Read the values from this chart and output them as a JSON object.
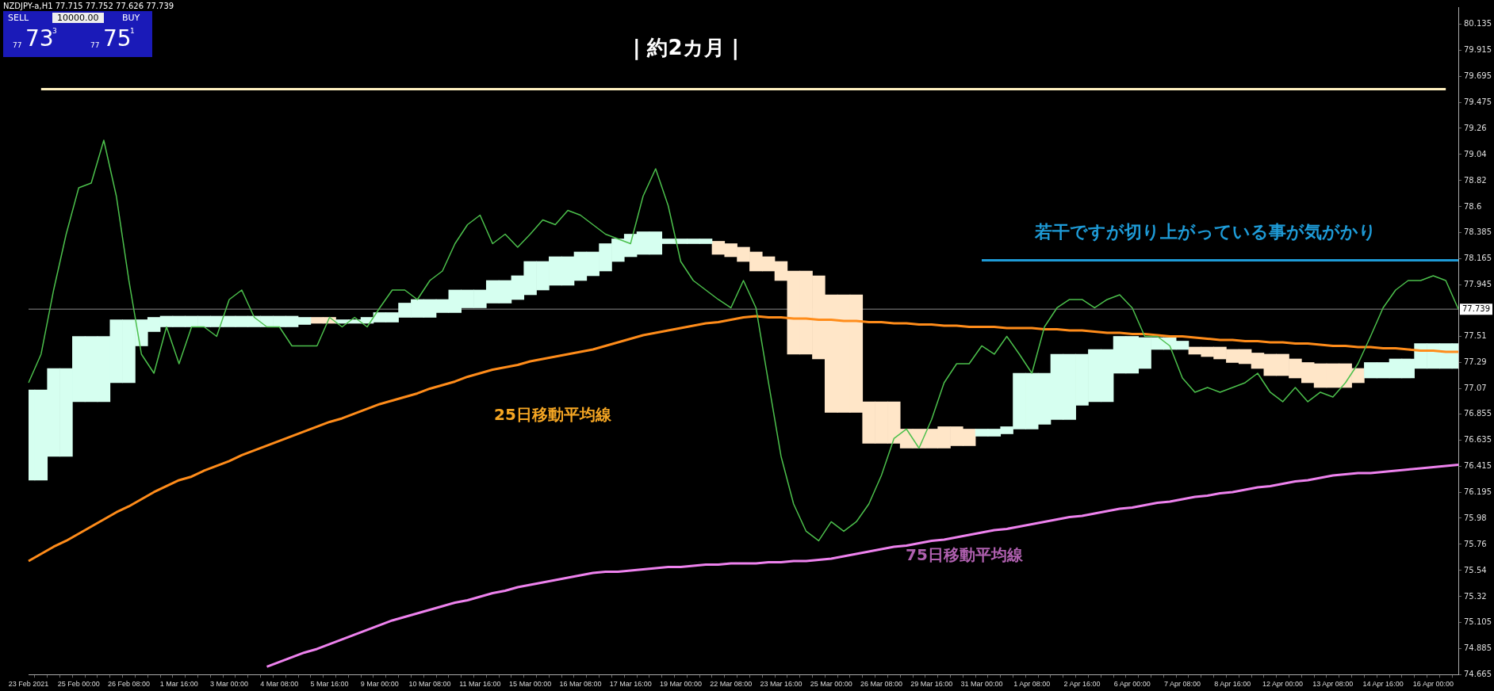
{
  "chart_data": {
    "type": "line",
    "title": "NZDJPY-a,H1  77.715 77.752 77.626 77.739",
    "categories": [
      "23 Feb 2021",
      null,
      null,
      null,
      "25 Feb 00:00",
      null,
      null,
      null,
      "26 Feb 08:00",
      null,
      null,
      null,
      "1 Mar 16:00",
      null,
      null,
      null,
      "3 Mar 00:00",
      null,
      null,
      null,
      "4 Mar 08:00",
      null,
      null,
      null,
      "5 Mar 16:00",
      null,
      null,
      null,
      "9 Mar 00:00",
      null,
      null,
      null,
      "10 Mar 08:00",
      null,
      null,
      null,
      "11 Mar 16:00",
      null,
      null,
      null,
      "15 Mar 00:00",
      null,
      null,
      null,
      "16 Mar 08:00",
      null,
      null,
      null,
      "17 Mar 16:00",
      null,
      null,
      null,
      "19 Mar 00:00",
      null,
      null,
      null,
      "22 Mar 08:00",
      null,
      null,
      null,
      "23 Mar 16:00",
      null,
      null,
      null,
      "25 Mar 00:00",
      null,
      null,
      null,
      "26 Mar 08:00",
      null,
      null,
      null,
      "29 Mar 16:00",
      null,
      null,
      null,
      "31 Mar 00:00",
      null,
      null,
      null,
      "1 Apr 08:00",
      null,
      null,
      null,
      "2 Apr 16:00",
      null,
      null,
      null,
      "6 Apr 00:00",
      null,
      null,
      null,
      "7 Apr 08:00",
      null,
      null,
      null,
      "8 Apr 16:00",
      null,
      null,
      null,
      "12 Apr 00:00",
      null,
      null,
      null,
      "13 Apr 08:00",
      null,
      null,
      null,
      "14 Apr 16:00",
      null,
      null,
      null,
      "16 Apr 00:00",
      null,
      null
    ],
    "series": [
      {
        "color": "#4cc04c",
        "values": [
          77.12,
          77.36,
          77.9,
          78.37,
          78.76,
          78.8,
          79.16,
          78.69,
          77.98,
          77.36,
          77.2,
          77.59,
          77.28,
          77.59,
          77.59,
          77.51,
          77.82,
          77.9,
          77.67,
          77.59,
          77.59,
          77.43,
          77.43,
          77.43,
          77.67,
          77.59,
          77.67,
          77.59,
          77.75,
          77.9,
          77.9,
          77.82,
          77.98,
          78.06,
          78.29,
          78.45,
          78.53,
          78.29,
          78.37,
          78.26,
          78.37,
          78.49,
          78.45,
          78.57,
          78.53,
          78.45,
          78.37,
          78.33,
          78.29,
          78.69,
          78.92,
          78.61,
          78.14,
          77.98,
          77.9,
          77.82,
          77.75,
          77.98,
          77.75,
          77.12,
          76.5,
          76.1,
          75.87,
          75.79,
          75.95,
          75.87,
          75.95,
          76.1,
          76.34,
          76.65,
          76.73,
          76.57,
          76.81,
          77.12,
          77.28,
          77.28,
          77.43,
          77.36,
          77.51,
          77.36,
          77.2,
          77.59,
          77.75,
          77.82,
          77.82,
          77.75,
          77.82,
          77.86,
          77.75,
          77.51,
          77.51,
          77.43,
          77.16,
          77.04,
          77.08,
          77.04,
          77.08,
          77.12,
          77.2,
          77.04,
          76.96,
          77.08,
          76.96,
          77.04,
          77.0,
          77.12,
          77.28,
          77.51,
          77.75,
          77.9,
          77.98,
          77.98,
          78.02,
          77.98,
          77.74
        ]
      },
      {
        "color": "#ff8c1a",
        "values": [
          75.62,
          75.68,
          75.74,
          75.79,
          75.85,
          75.91,
          75.97,
          76.03,
          76.08,
          76.14,
          76.2,
          76.25,
          76.3,
          76.33,
          76.38,
          76.42,
          76.46,
          76.51,
          76.55,
          76.59,
          76.63,
          76.67,
          76.71,
          76.75,
          76.79,
          76.82,
          76.86,
          76.9,
          76.94,
          76.97,
          77.0,
          77.03,
          77.07,
          77.1,
          77.13,
          77.17,
          77.2,
          77.23,
          77.25,
          77.27,
          77.3,
          77.32,
          77.34,
          77.36,
          77.38,
          77.4,
          77.43,
          77.46,
          77.49,
          77.52,
          77.54,
          77.56,
          77.58,
          77.6,
          77.62,
          77.63,
          77.65,
          77.67,
          77.68,
          77.67,
          77.67,
          77.66,
          77.66,
          77.65,
          77.65,
          77.64,
          77.64,
          77.63,
          77.63,
          77.62,
          77.62,
          77.61,
          77.61,
          77.6,
          77.6,
          77.59,
          77.59,
          77.59,
          77.58,
          77.58,
          77.58,
          77.57,
          77.57,
          77.56,
          77.56,
          77.55,
          77.54,
          77.54,
          77.53,
          77.53,
          77.52,
          77.51,
          77.51,
          77.5,
          77.49,
          77.48,
          77.48,
          77.47,
          77.47,
          77.46,
          77.46,
          77.45,
          77.45,
          77.44,
          77.43,
          77.43,
          77.42,
          77.42,
          77.41,
          77.41,
          77.4,
          77.39,
          77.39,
          77.38,
          77.38
        ]
      },
      {
        "color": "#ee82ee",
        "values": [
          null,
          null,
          null,
          null,
          null,
          null,
          null,
          null,
          null,
          null,
          null,
          null,
          null,
          null,
          null,
          null,
          null,
          null,
          null,
          74.73,
          74.77,
          74.81,
          74.85,
          74.88,
          74.92,
          74.96,
          75.0,
          75.04,
          75.08,
          75.12,
          75.15,
          75.18,
          75.21,
          75.24,
          75.27,
          75.29,
          75.32,
          75.35,
          75.37,
          75.4,
          75.42,
          75.44,
          75.46,
          75.48,
          75.5,
          75.52,
          75.53,
          75.53,
          75.54,
          75.55,
          75.56,
          75.57,
          75.57,
          75.58,
          75.59,
          75.59,
          75.6,
          75.6,
          75.6,
          75.61,
          75.61,
          75.62,
          75.62,
          75.63,
          75.64,
          75.66,
          75.68,
          75.7,
          75.72,
          75.74,
          75.75,
          75.77,
          75.79,
          75.8,
          75.82,
          75.84,
          75.86,
          75.88,
          75.89,
          75.91,
          75.93,
          75.95,
          75.97,
          75.99,
          76.0,
          76.02,
          76.04,
          76.06,
          76.07,
          76.09,
          76.11,
          76.12,
          76.14,
          76.16,
          76.17,
          76.19,
          76.2,
          76.22,
          76.24,
          76.25,
          76.27,
          76.29,
          76.3,
          76.32,
          76.34,
          76.35,
          76.36,
          76.36,
          76.37,
          76.38,
          76.39,
          76.4,
          76.41,
          76.42,
          76.43
        ]
      },
      {
        "color": "#fff0c0",
        "values": [
          null,
          79.59,
          null,
          null,
          null,
          null,
          null,
          null,
          null,
          null,
          null,
          null,
          null,
          null,
          null,
          null,
          null,
          null,
          null,
          null,
          null,
          null,
          null,
          null,
          null,
          null,
          null,
          null,
          null,
          null,
          null,
          null,
          null,
          null,
          null,
          null,
          null,
          null,
          null,
          null,
          null,
          null,
          null,
          null,
          null,
          null,
          null,
          null,
          null,
          null,
          null,
          null,
          null,
          null,
          null,
          null,
          null,
          null,
          null,
          null,
          null,
          null,
          null,
          null,
          null,
          null,
          null,
          null,
          null,
          null,
          null,
          null,
          null,
          null,
          null,
          null,
          null,
          null,
          null,
          null,
          null,
          null,
          null,
          null,
          null,
          null,
          null,
          null,
          null,
          null,
          null,
          null,
          null,
          null,
          null,
          null,
          null,
          null,
          null,
          null,
          null,
          null,
          null,
          null,
          null,
          null,
          null,
          null,
          null,
          null,
          null,
          null,
          null,
          79.59,
          null
        ]
      },
      {
        "color": "#1e9bd7",
        "values": [
          null,
          null,
          null,
          null,
          null,
          null,
          null,
          null,
          null,
          null,
          null,
          null,
          null,
          null,
          null,
          null,
          null,
          null,
          null,
          null,
          null,
          null,
          null,
          null,
          null,
          null,
          null,
          null,
          null,
          null,
          null,
          null,
          null,
          null,
          null,
          null,
          null,
          null,
          null,
          null,
          null,
          null,
          null,
          null,
          null,
          null,
          null,
          null,
          null,
          null,
          null,
          null,
          null,
          null,
          null,
          null,
          null,
          null,
          null,
          null,
          null,
          null,
          null,
          null,
          null,
          null,
          null,
          null,
          null,
          null,
          null,
          null,
          null,
          null,
          null,
          null,
          78.15,
          null,
          null,
          null,
          null,
          null,
          null,
          null,
          null,
          null,
          null,
          null,
          null,
          null,
          null,
          null,
          null,
          null,
          null,
          null,
          null,
          null,
          null,
          null,
          null,
          null,
          null,
          null,
          null,
          null,
          null,
          null,
          null,
          null,
          null,
          null,
          null,
          null,
          78.15
        ]
      },
      {
        "type": "bar",
        "color": "#d6fff0",
        "values": [
          0.76,
          0.76,
          0.74,
          0.74,
          0.55,
          0.55,
          0.55,
          0.53,
          0.53,
          0.22,
          0.12,
          0.09,
          0.09,
          0.09,
          0.09,
          0.09,
          0.09,
          0.09,
          0.09,
          0.09,
          0.09,
          0.09,
          0.06,
          null,
          null,
          0.03,
          0.03,
          0.05,
          0.08,
          0.08,
          0.12,
          0.15,
          0.15,
          0.11,
          0.19,
          0.15,
          0.15,
          0.19,
          0.19,
          0.2,
          0.28,
          0.24,
          0.24,
          0.24,
          0.24,
          0.2,
          0.23,
          0.19,
          0.19,
          0.19,
          0.19,
          0.04,
          0.04,
          0.04,
          0.04,
          null,
          null,
          null,
          null,
          null,
          null,
          null,
          null,
          null,
          null,
          null,
          null,
          null,
          null,
          null,
          null,
          null,
          null,
          null,
          null,
          null,
          0.06,
          0.06,
          0.06,
          0.47,
          0.47,
          0.43,
          0.55,
          0.55,
          0.43,
          0.44,
          0.44,
          0.31,
          0.31,
          0.26,
          0.1,
          0.1,
          0.07,
          null,
          null,
          null,
          null,
          null,
          null,
          null,
          null,
          null,
          null,
          null,
          null,
          null,
          null,
          0.13,
          0.13,
          0.16,
          0.16,
          0.21,
          0.21,
          0.21,
          0.21
        ],
        "base": [
          76.3,
          76.3,
          76.5,
          76.5,
          76.96,
          76.96,
          76.96,
          77.12,
          77.12,
          77.43,
          77.55,
          77.59,
          77.59,
          77.59,
          77.59,
          77.59,
          77.59,
          77.59,
          77.59,
          77.59,
          77.59,
          77.59,
          77.61,
          null,
          null,
          77.62,
          77.62,
          77.62,
          77.63,
          77.63,
          77.67,
          77.67,
          77.67,
          77.71,
          77.71,
          77.75,
          77.75,
          77.79,
          77.79,
          77.82,
          77.86,
          77.9,
          77.94,
          77.94,
          77.98,
          78.02,
          78.06,
          78.14,
          78.18,
          78.2,
          78.2,
          78.29,
          78.29,
          78.29,
          78.29,
          null,
          null,
          null,
          null,
          null,
          null,
          null,
          null,
          null,
          null,
          null,
          null,
          null,
          null,
          null,
          null,
          null,
          null,
          null,
          null,
          null,
          76.67,
          76.67,
          76.69,
          76.73,
          76.73,
          76.77,
          76.81,
          76.81,
          76.93,
          76.96,
          76.96,
          77.2,
          77.2,
          77.24,
          77.4,
          77.4,
          77.4,
          null,
          null,
          null,
          null,
          null,
          null,
          null,
          null,
          null,
          null,
          null,
          null,
          null,
          null,
          77.16,
          77.16,
          77.16,
          77.16,
          77.24,
          77.24,
          77.24,
          77.24
        ]
      },
      {
        "type": "bar",
        "color": "#ffe6c8",
        "values": [
          null,
          null,
          null,
          null,
          null,
          null,
          null,
          null,
          null,
          null,
          null,
          null,
          null,
          null,
          null,
          null,
          null,
          null,
          null,
          null,
          null,
          null,
          null,
          0.05,
          0.05,
          null,
          null,
          null,
          null,
          null,
          null,
          null,
          null,
          null,
          null,
          null,
          null,
          null,
          null,
          null,
          null,
          null,
          null,
          null,
          null,
          null,
          null,
          null,
          null,
          null,
          null,
          null,
          null,
          null,
          null,
          0.11,
          0.11,
          0.12,
          0.16,
          0.12,
          0.16,
          0.7,
          0.7,
          0.7,
          0.99,
          0.99,
          0.99,
          0.35,
          0.35,
          0.35,
          0.16,
          0.16,
          0.16,
          0.18,
          0.16,
          0.14,
          null,
          null,
          null,
          null,
          null,
          null,
          null,
          null,
          null,
          null,
          null,
          null,
          null,
          null,
          null,
          null,
          null,
          0.06,
          0.08,
          0.1,
          0.11,
          0.12,
          0.13,
          0.18,
          0.18,
          0.16,
          0.17,
          0.2,
          0.2,
          0.2,
          0.12,
          null,
          null,
          null,
          null,
          null,
          null,
          null,
          null
        ],
        "base": [
          null,
          null,
          null,
          null,
          null,
          null,
          null,
          null,
          null,
          null,
          null,
          null,
          null,
          null,
          null,
          null,
          null,
          null,
          null,
          null,
          null,
          null,
          null,
          77.62,
          77.62,
          null,
          null,
          null,
          null,
          null,
          null,
          null,
          null,
          null,
          null,
          null,
          null,
          null,
          null,
          null,
          null,
          null,
          null,
          null,
          null,
          null,
          null,
          null,
          null,
          null,
          null,
          null,
          null,
          null,
          null,
          78.2,
          78.18,
          78.14,
          78.06,
          78.06,
          77.98,
          77.36,
          77.36,
          77.32,
          76.87,
          76.87,
          76.87,
          76.61,
          76.61,
          76.61,
          76.57,
          76.57,
          76.57,
          76.57,
          76.59,
          76.59,
          null,
          null,
          null,
          null,
          null,
          null,
          null,
          null,
          null,
          null,
          null,
          null,
          null,
          null,
          null,
          null,
          null,
          77.36,
          77.34,
          77.32,
          77.29,
          77.28,
          77.24,
          77.18,
          77.18,
          77.16,
          77.12,
          77.08,
          77.08,
          77.08,
          77.12,
          null,
          null,
          null,
          null,
          null,
          null,
          null,
          null
        ]
      }
    ],
    "ylim": [
      74.665,
      80.28
    ],
    "yticks": [
      74.665,
      74.885,
      75.105,
      75.32,
      75.54,
      75.76,
      75.98,
      76.195,
      76.415,
      76.635,
      76.855,
      77.07,
      77.29,
      77.51,
      77.945,
      78.165,
      78.385,
      78.6,
      78.82,
      79.04,
      79.26,
      79.475,
      79.695,
      79.915,
      80.135
    ],
    "ref_lines": [
      {
        "axis": "y",
        "value": 77.739,
        "label": "77.739",
        "color": "#8c8c8c"
      }
    ],
    "annotations": [
      "| 約2カ月 |",
      "若干ですが切り上がっている事が気がかり",
      "25日移動平均線",
      "75日移動平均線",
      "SELL",
      "10000.00",
      "BUY",
      "77",
      "73",
      "3",
      "77",
      "75",
      "1"
    ],
    "grid": false,
    "legend": false,
    "marker": "none",
    "line_style": "solid"
  }
}
